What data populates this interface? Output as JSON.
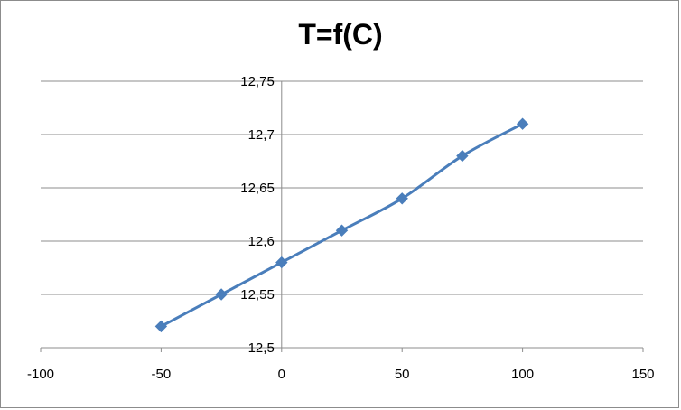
{
  "chart_data": {
    "type": "scatter",
    "title": "T=f(C)",
    "xlabel": "",
    "ylabel": "",
    "xlim": [
      -100,
      150
    ],
    "ylim": [
      12.5,
      12.75
    ],
    "x_ticks": [
      -100,
      -50,
      0,
      50,
      100,
      150
    ],
    "y_ticks": [
      12.5,
      12.55,
      12.6,
      12.65,
      12.7,
      12.75
    ],
    "x_tick_labels": [
      "-100",
      "-50",
      "0",
      "50",
      "100",
      "150"
    ],
    "y_tick_labels": [
      "12,5",
      "12,55",
      "12,6",
      "12,65",
      "12,7",
      "12,75"
    ],
    "grid": true,
    "legend": "none",
    "series": [
      {
        "x": [
          -50,
          -25,
          0,
          25,
          50,
          75,
          100
        ],
        "y": [
          12.52,
          12.55,
          12.58,
          12.61,
          12.64,
          12.68,
          12.71
        ],
        "color": "#4a7ebb",
        "marker": "diamond",
        "line": "smooth"
      }
    ]
  }
}
